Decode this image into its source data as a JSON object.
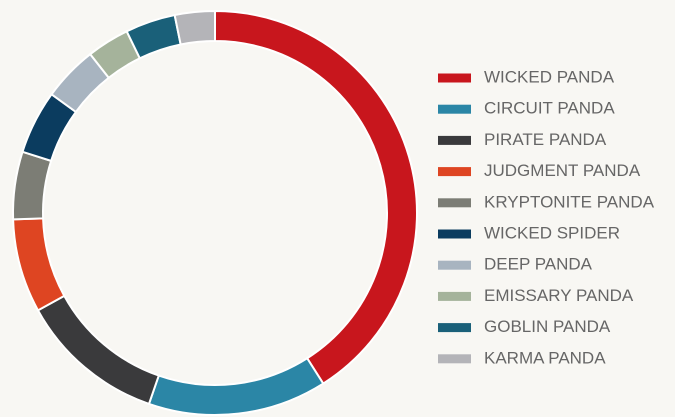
{
  "chart_data": {
    "type": "donut",
    "categories": [
      "WICKED PANDA",
      "CIRCUIT PANDA",
      "PIRATE PANDA",
      "JUDGMENT PANDA",
      "KRYPTONITE PANDA",
      "WICKED SPIDER",
      "DEEP PANDA",
      "EMISSARY PANDA",
      "GOBLIN PANDA",
      "KARMA PANDA"
    ],
    "values": [
      41,
      14.3,
      11.7,
      7.5,
      5.4,
      5.1,
      4.4,
      3.4,
      4,
      3.2
    ],
    "colors": [
      "#c8161d",
      "#2b86a6",
      "#3a3a3c",
      "#de4522",
      "#7c7d75",
      "#0b3c5f",
      "#a8b4c0",
      "#a5b39b",
      "#1a6079",
      "#b4b4b8"
    ],
    "legend": "right"
  }
}
